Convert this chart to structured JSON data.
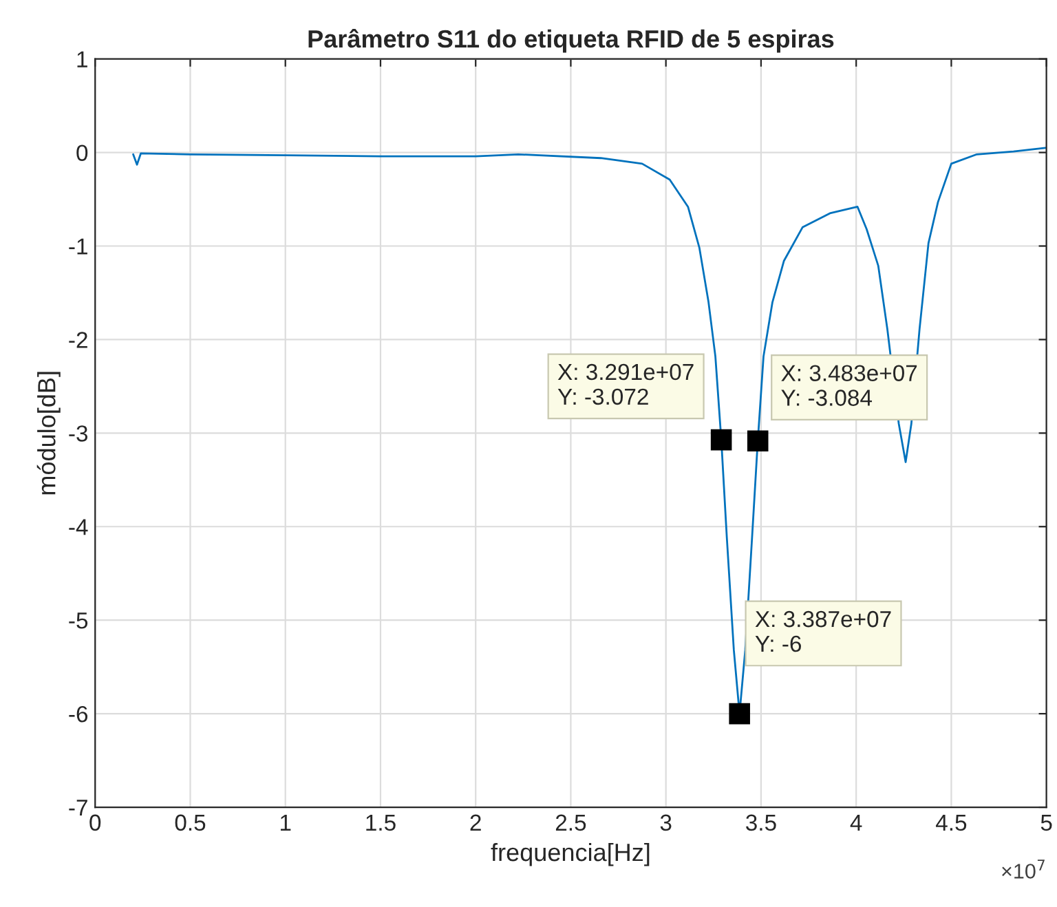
{
  "chart_data": {
    "type": "line",
    "title": "Parâmetro S11 do etiqueta RFID de 5 espiras",
    "xlabel": "frequencia[Hz]",
    "ylabel": "módulo[dB]",
    "series": [
      {
        "color": "#0072bd",
        "x": [
          0.2,
          0.22,
          0.24,
          0.5,
          1.0,
          1.5,
          2.0,
          2.224,
          2.658,
          2.875,
          3.02,
          3.116,
          3.176,
          3.224,
          3.26,
          3.291,
          3.32,
          3.357,
          3.387,
          3.417,
          3.453,
          3.483,
          3.513,
          3.56,
          3.62,
          3.718,
          3.862,
          4.007,
          4.055,
          4.116,
          4.164,
          4.224,
          4.26,
          4.29,
          4.333,
          4.38,
          4.43,
          4.5,
          4.634,
          4.827,
          4.995
        ],
        "values": [
          -0.02,
          -0.13,
          -0.01,
          -0.02,
          -0.03,
          -0.04,
          -0.04,
          -0.02,
          -0.06,
          -0.12,
          -0.29,
          -0.58,
          -1.02,
          -1.6,
          -2.18,
          -3.07,
          -4.11,
          -5.32,
          -6,
          -5.32,
          -4.11,
          -3.08,
          -2.18,
          -1.6,
          -1.16,
          -0.8,
          -0.65,
          -0.58,
          -0.82,
          -1.21,
          -1.89,
          -2.9,
          -3.31,
          -2.9,
          -1.89,
          -0.97,
          -0.53,
          -0.12,
          -0.02,
          0.01,
          0.05
        ]
      }
    ],
    "xlim": [
      0,
      5
    ],
    "xticks": [
      0,
      0.5,
      1,
      1.5,
      2,
      2.5,
      3,
      3.5,
      4,
      4.5,
      5
    ],
    "ylim": [
      -7,
      1
    ],
    "yticks": [
      -7,
      -6,
      -5,
      -4,
      -3,
      -2,
      -1,
      0,
      1
    ],
    "grid": true,
    "marker": "none",
    "line_style": "solid",
    "annotations": [
      {
        "text": "X: 3.291e+07\nY: -3.072",
        "x": 3.291,
        "y": -3.072
      },
      {
        "text": "X: 3.483e+07\nY: -3.084",
        "x": 3.483,
        "y": -3.084
      },
      {
        "text": "X: 3.387e+07\nY: -6",
        "x": 3.387,
        "y": -6
      },
      "×10$^{7}$"
    ]
  }
}
